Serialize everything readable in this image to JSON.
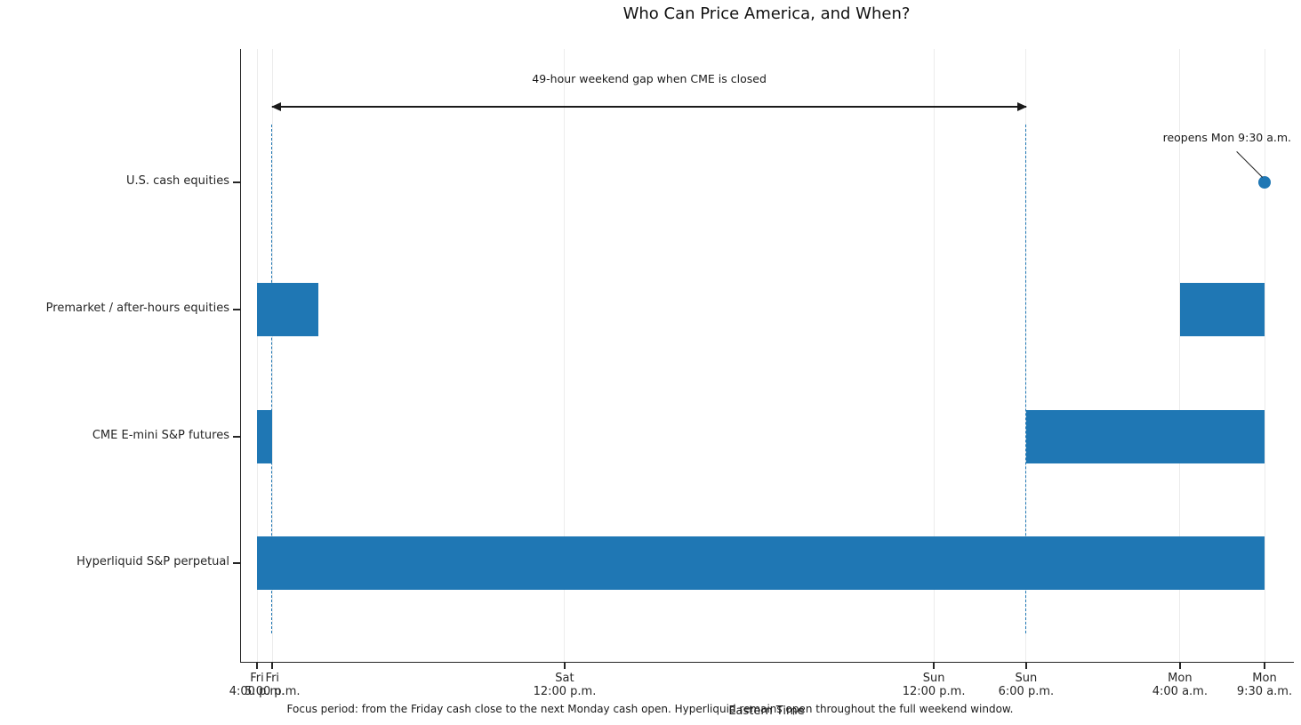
{
  "title": "Who Can Price America, and When?",
  "caption": "Focus period: from the Friday cash close to the next Monday cash open. Hyperliquid remains open throughout the full weekend window.",
  "xlabel": "Eastern Time",
  "colors": {
    "bar": "#1f77b4",
    "dashed_line": "#1f77b4",
    "marker": "#1f77b4",
    "grid": "#ececec",
    "axis": "#262626",
    "annotation": "#1a1a1a"
  },
  "chart_data": {
    "type": "bar",
    "subtype": "horizontal-gantt-timeline",
    "x_unit": "hours since Fri 4:00 p.m. Eastern Time",
    "x_range_hours": [
      0,
      65.5
    ],
    "grid": "vertical-on",
    "x_ticks": [
      {
        "hours": 0,
        "line1": "Fri",
        "line2": "4:00 p.m."
      },
      {
        "hours": 1,
        "line1": "Fri",
        "line2": "5:00 p.m."
      },
      {
        "hours": 20,
        "line1": "Sat",
        "line2": "12:00 p.m."
      },
      {
        "hours": 44,
        "line1": "Sun",
        "line2": "12:00 p.m."
      },
      {
        "hours": 50,
        "line1": "Sun",
        "line2": "6:00 p.m."
      },
      {
        "hours": 60,
        "line1": "Mon",
        "line2": "4:00 a.m."
      },
      {
        "hours": 65.5,
        "line1": "Mon",
        "line2": "9:30 a.m."
      }
    ],
    "rows": [
      {
        "label": "U.S. cash equities",
        "segments": [],
        "marker_hours": 65.5
      },
      {
        "label": "Premarket / after-hours equities",
        "segments": [
          [
            0,
            4
          ],
          [
            60,
            65.5
          ]
        ]
      },
      {
        "label": "CME E-mini S&P futures",
        "segments": [
          [
            0,
            1
          ],
          [
            50,
            65.5
          ]
        ]
      },
      {
        "label": "Hyperliquid S&P perpetual",
        "segments": [
          [
            0,
            65.5
          ]
        ]
      }
    ],
    "gap_annotation": {
      "label": "49-hour weekend gap when CME is closed",
      "from_hours": 1,
      "to_hours": 50
    },
    "reopen_annotation": {
      "label": "reopens Mon 9:30 a.m.",
      "points_to_hours": 65.5,
      "points_to_row": 0
    }
  }
}
